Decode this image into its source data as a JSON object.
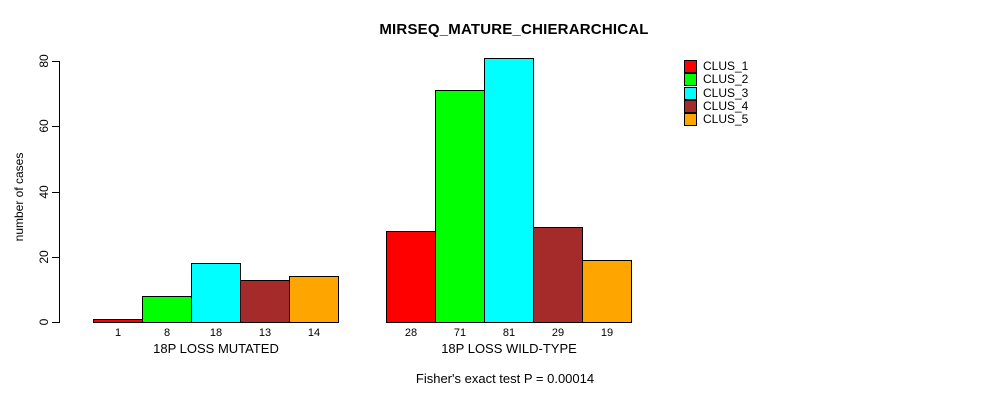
{
  "title": "MIRSEQ_MATURE_CHIERARCHICAL",
  "subtitle": "Fisher's exact test P = 0.00014",
  "chart_data": {
    "type": "bar",
    "title": "MIRSEQ_MATURE_CHIERARCHICAL",
    "xlabel": "",
    "ylabel": "number of cases",
    "ylim": [
      0,
      80
    ],
    "yticks": [
      0,
      20,
      40,
      60,
      80
    ],
    "grid": false,
    "legend_position": "right",
    "bar_value_labels_shown": true,
    "categories": [
      "18P LOSS MUTATED",
      "18P LOSS WILD-TYPE"
    ],
    "series": [
      {
        "name": "CLUS_1",
        "color": "#FF0000",
        "values": [
          1,
          28
        ]
      },
      {
        "name": "CLUS_2",
        "color": "#00FF00",
        "values": [
          8,
          71
        ]
      },
      {
        "name": "CLUS_3",
        "color": "#00FFFF",
        "values": [
          18,
          81
        ]
      },
      {
        "name": "CLUS_4",
        "color": "#A52A2A",
        "values": [
          13,
          29
        ]
      },
      {
        "name": "CLUS_5",
        "color": "#FFA500",
        "values": [
          14,
          19
        ]
      }
    ],
    "annotation": "Fisher's exact test P = 0.00014"
  }
}
